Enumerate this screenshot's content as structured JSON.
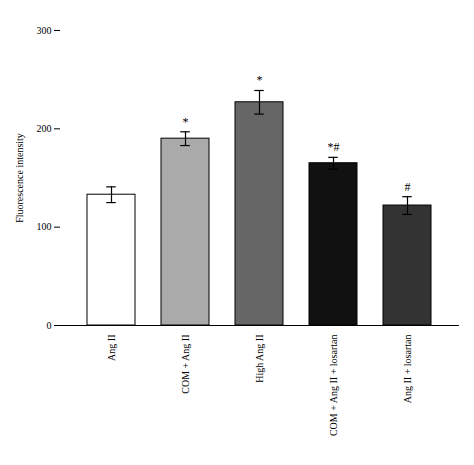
{
  "chart_data": {
    "type": "bar",
    "categories": [
      "Ang II",
      "COM + Ang II",
      "High Ang II",
      "COM + Ang II + losartan",
      "Ang II + losartan"
    ],
    "values": [
      133,
      190,
      227,
      165,
      122
    ],
    "errors": [
      8,
      7,
      12,
      6,
      9
    ],
    "colors": [
      "#ffffff",
      "#aaaaaa",
      "#666666",
      "#111111",
      "#333333"
    ],
    "annotations": [
      null,
      "*",
      "*",
      "*#",
      "#"
    ],
    "ylabel": "Fluorescence intensity",
    "ylim": [
      0,
      300
    ],
    "yticks": [
      0,
      100,
      200,
      300
    ],
    "grid": false
  }
}
